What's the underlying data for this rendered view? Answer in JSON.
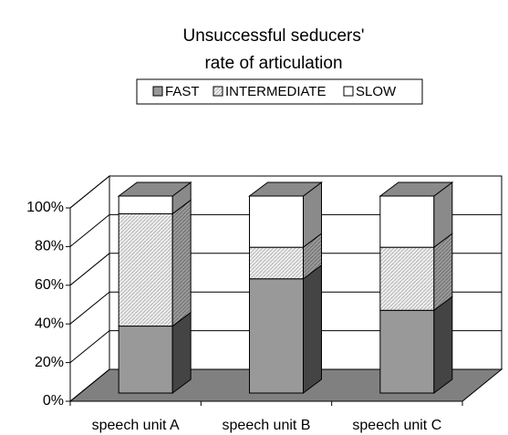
{
  "chart_data": {
    "type": "bar",
    "stacked": true,
    "title": [
      "Unsuccessful seducers'",
      "rate of articulation"
    ],
    "categories": [
      "speech unit A",
      "speech unit B",
      "speech unit C"
    ],
    "series": [
      {
        "name": "FAST",
        "color": "#999999",
        "side_color": "#444444",
        "values": [
          34,
          58,
          42
        ]
      },
      {
        "name": "INTERMEDIATE",
        "color": "#e6e6e6",
        "side_color": "#8a8a8a",
        "pattern": "hatch",
        "values": [
          57,
          16,
          32
        ]
      },
      {
        "name": "SLOW",
        "color": "#ffffff",
        "side_color": "#8a8a8a",
        "values": [
          9,
          26,
          26
        ]
      }
    ],
    "ylim": [
      0,
      100
    ],
    "yticks": [
      {
        "value": 0,
        "label": "0%"
      },
      {
        "value": 20,
        "label": "20%"
      },
      {
        "value": 40,
        "label": "40%"
      },
      {
        "value": 60,
        "label": "60%"
      },
      {
        "value": 80,
        "label": "80%"
      },
      {
        "value": 100,
        "label": "100%"
      }
    ],
    "grid": true,
    "legend": "top"
  }
}
